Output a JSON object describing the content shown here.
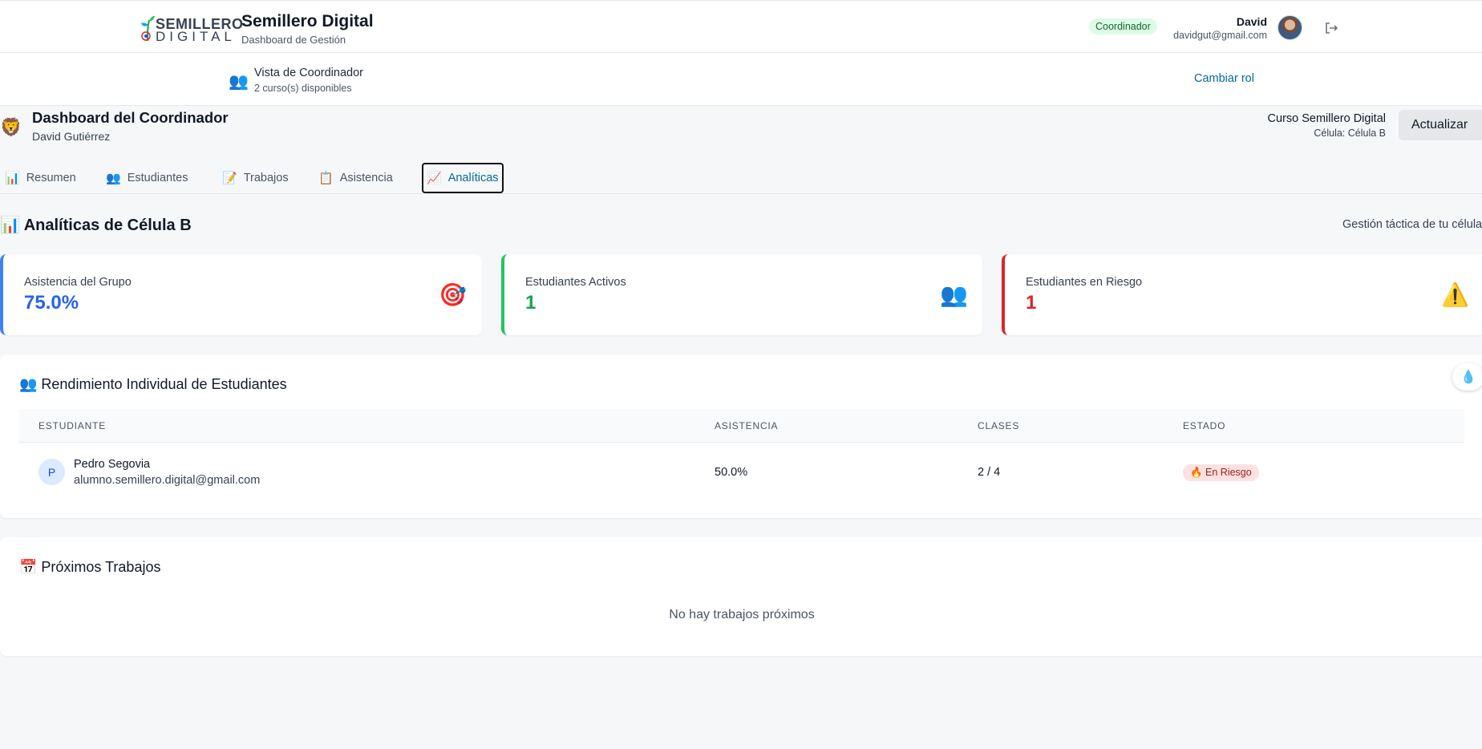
{
  "header": {
    "logo_line1": "SEMILLERO",
    "logo_line2": "DIGITAL",
    "title": "Semillero Digital",
    "subtitle": "Dashboard de Gestión",
    "role_badge": "Coordinador",
    "user_name": "David",
    "user_email": "davidgut@gmail.com"
  },
  "role_bar": {
    "icon": "👥",
    "title": "Vista de Coordinador",
    "subtitle": "2 curso(s) disponibles",
    "change_role": "Cambiar rol"
  },
  "dashboard": {
    "icon": "🦁",
    "title": "Dashboard del Coordinador",
    "user": "David Gutiérrez",
    "course": "Curso Semillero Digital",
    "cell": "Célula: Célula B",
    "refresh_label": "Actualizar"
  },
  "tabs": [
    {
      "icon": "📊",
      "label": "Resumen"
    },
    {
      "icon": "👥",
      "label": "Estudiantes"
    },
    {
      "icon": "📝",
      "label": "Trabajos"
    },
    {
      "icon": "📋",
      "label": "Asistencia"
    },
    {
      "icon": "📈",
      "label": "Analíticas"
    }
  ],
  "analytics": {
    "title": "📊 Analíticas de Célula B",
    "subtitle": "Gestión táctica de tu célula"
  },
  "stats": [
    {
      "label": "Asistencia del Grupo",
      "value": "75.0%",
      "icon": "🎯",
      "color": "#2563eb"
    },
    {
      "label": "Estudiantes Activos",
      "value": "1",
      "icon": "👥",
      "color": "#16a34a"
    },
    {
      "label": "Estudiantes en Riesgo",
      "value": "1",
      "icon": "⚠️",
      "color": "#dc2626"
    }
  ],
  "performance": {
    "title": "👥 Rendimiento Individual de Estudiantes",
    "columns": [
      "ESTUDIANTE",
      "ASISTENCIA",
      "CLASES",
      "ESTADO"
    ],
    "rows": [
      {
        "initial": "P",
        "name": "Pedro Segovia",
        "email": "alumno.semillero.digital@gmail.com",
        "attendance": "50.0%",
        "classes": "2 / 4",
        "status": "🔥 En Riesgo"
      }
    ]
  },
  "upcoming": {
    "title": "📅 Próximos Trabajos",
    "empty": "No hay trabajos próximos"
  },
  "fab_icon": "💧"
}
